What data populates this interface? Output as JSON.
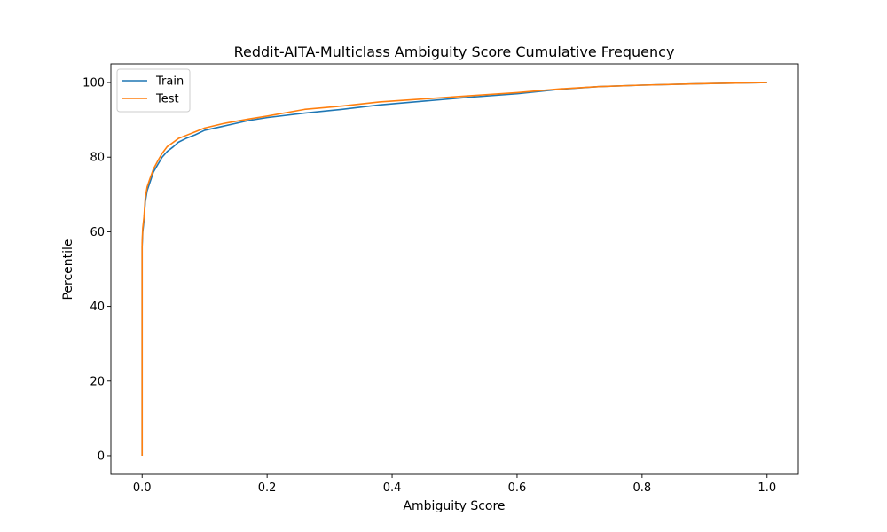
{
  "chart_data": {
    "type": "line",
    "title": "Reddit-AITA-Multiclass Ambiguity Score Cumulative Frequency",
    "xlabel": "Ambiguity Score",
    "ylabel": "Percentile",
    "xlim": [
      -0.05,
      1.05
    ],
    "ylim": [
      -5,
      105
    ],
    "xticks": [
      0.0,
      0.2,
      0.4,
      0.6,
      0.8,
      1.0
    ],
    "xtick_labels": [
      "0.0",
      "0.2",
      "0.4",
      "0.6",
      "0.8",
      "1.0"
    ],
    "yticks": [
      0,
      20,
      40,
      60,
      80,
      100
    ],
    "ytick_labels": [
      "0",
      "20",
      "40",
      "60",
      "80",
      "100"
    ],
    "grid": false,
    "legend_position": "top-left",
    "series": [
      {
        "name": "Train",
        "color": "#1f77b4",
        "points": [
          [
            0.0,
            0
          ],
          [
            0.0,
            56
          ],
          [
            0.001,
            60
          ],
          [
            0.003,
            63
          ],
          [
            0.005,
            68
          ],
          [
            0.008,
            71
          ],
          [
            0.012,
            73
          ],
          [
            0.018,
            76
          ],
          [
            0.025,
            78
          ],
          [
            0.032,
            80
          ],
          [
            0.04,
            81.5
          ],
          [
            0.05,
            82.8
          ],
          [
            0.058,
            84
          ],
          [
            0.07,
            85
          ],
          [
            0.085,
            86
          ],
          [
            0.1,
            87.2
          ],
          [
            0.13,
            88.3
          ],
          [
            0.17,
            89.8
          ],
          [
            0.2,
            90.6
          ],
          [
            0.26,
            91.8
          ],
          [
            0.32,
            92.8
          ],
          [
            0.38,
            94
          ],
          [
            0.45,
            95
          ],
          [
            0.52,
            96
          ],
          [
            0.6,
            97
          ],
          [
            0.67,
            98.2
          ],
          [
            0.73,
            98.9
          ],
          [
            0.8,
            99.3
          ],
          [
            0.9,
            99.7
          ],
          [
            1.0,
            100
          ]
        ]
      },
      {
        "name": "Test",
        "color": "#ff7f0e",
        "points": [
          [
            0.0,
            0
          ],
          [
            0.0,
            57
          ],
          [
            0.001,
            61
          ],
          [
            0.003,
            64
          ],
          [
            0.005,
            69
          ],
          [
            0.008,
            72
          ],
          [
            0.012,
            74
          ],
          [
            0.018,
            76.8
          ],
          [
            0.025,
            79
          ],
          [
            0.032,
            81
          ],
          [
            0.04,
            82.8
          ],
          [
            0.05,
            84
          ],
          [
            0.058,
            85
          ],
          [
            0.07,
            85.8
          ],
          [
            0.085,
            86.8
          ],
          [
            0.1,
            87.8
          ],
          [
            0.13,
            89
          ],
          [
            0.17,
            90.2
          ],
          [
            0.2,
            91
          ],
          [
            0.26,
            92.8
          ],
          [
            0.32,
            93.7
          ],
          [
            0.38,
            94.8
          ],
          [
            0.45,
            95.6
          ],
          [
            0.52,
            96.4
          ],
          [
            0.6,
            97.3
          ],
          [
            0.67,
            98.3
          ],
          [
            0.73,
            98.9
          ],
          [
            0.8,
            99.3
          ],
          [
            0.9,
            99.7
          ],
          [
            1.0,
            100
          ]
        ]
      }
    ]
  }
}
